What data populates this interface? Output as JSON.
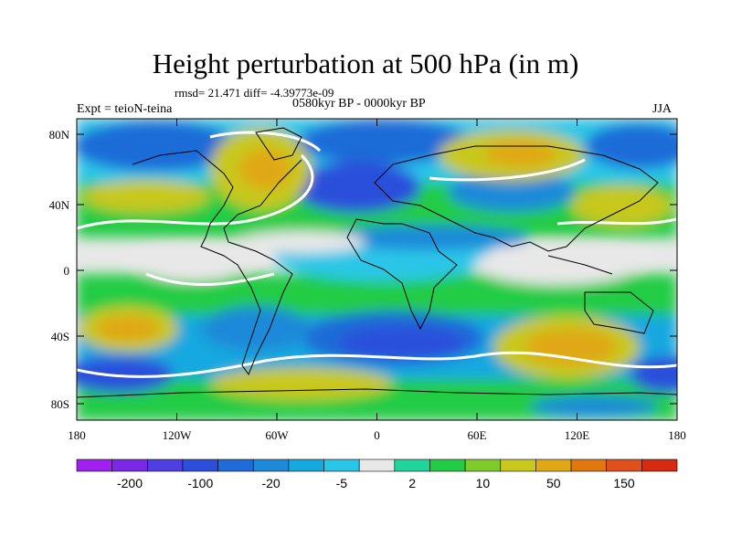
{
  "title": "Height perturbation at 500 hPa (in m)",
  "stats": "rmsd= 21.471 diff= -4.39773e-09",
  "period": "0580kyr BP - 0000kyr BP",
  "experiment": "Expt = teioN-teina",
  "season": "JJA",
  "lat_ticks": [
    "80N",
    "40N",
    "0",
    "40S",
    "80S"
  ],
  "lon_ticks": [
    "180",
    "120W",
    "60W",
    "0",
    "60E",
    "120E",
    "180"
  ],
  "colorbar": {
    "colors": [
      "#a020f0",
      "#7b28e6",
      "#4f3ee0",
      "#2c4fdb",
      "#1f6cd8",
      "#1c8ad8",
      "#16a8e0",
      "#29c6e8",
      "#e8e8e8",
      "#20d49a",
      "#22cc44",
      "#7ecb2a",
      "#c8c81e",
      "#e0a814",
      "#e0780f",
      "#e0501c",
      "#d82a10"
    ],
    "labels": [
      "-200",
      "-100",
      "-20",
      "-5",
      "2",
      "10",
      "50",
      "150"
    ]
  }
}
